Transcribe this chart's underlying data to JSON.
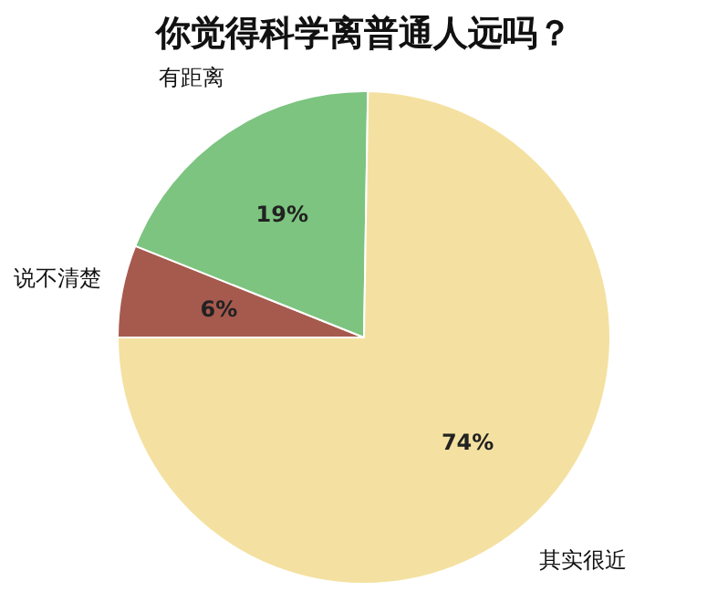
{
  "chart_data": {
    "type": "pie",
    "title": "你觉得科学离普通人远吗？",
    "categories": [
      "说不清楚",
      "有距离",
      "其实很近"
    ],
    "values": [
      6,
      19,
      74
    ],
    "colors": [
      "#a65a4e",
      "#7cc47f",
      "#f4e1a1"
    ],
    "data_labels": true,
    "value_labels": [
      "6%",
      "19%",
      "74%"
    ],
    "legend": false
  }
}
